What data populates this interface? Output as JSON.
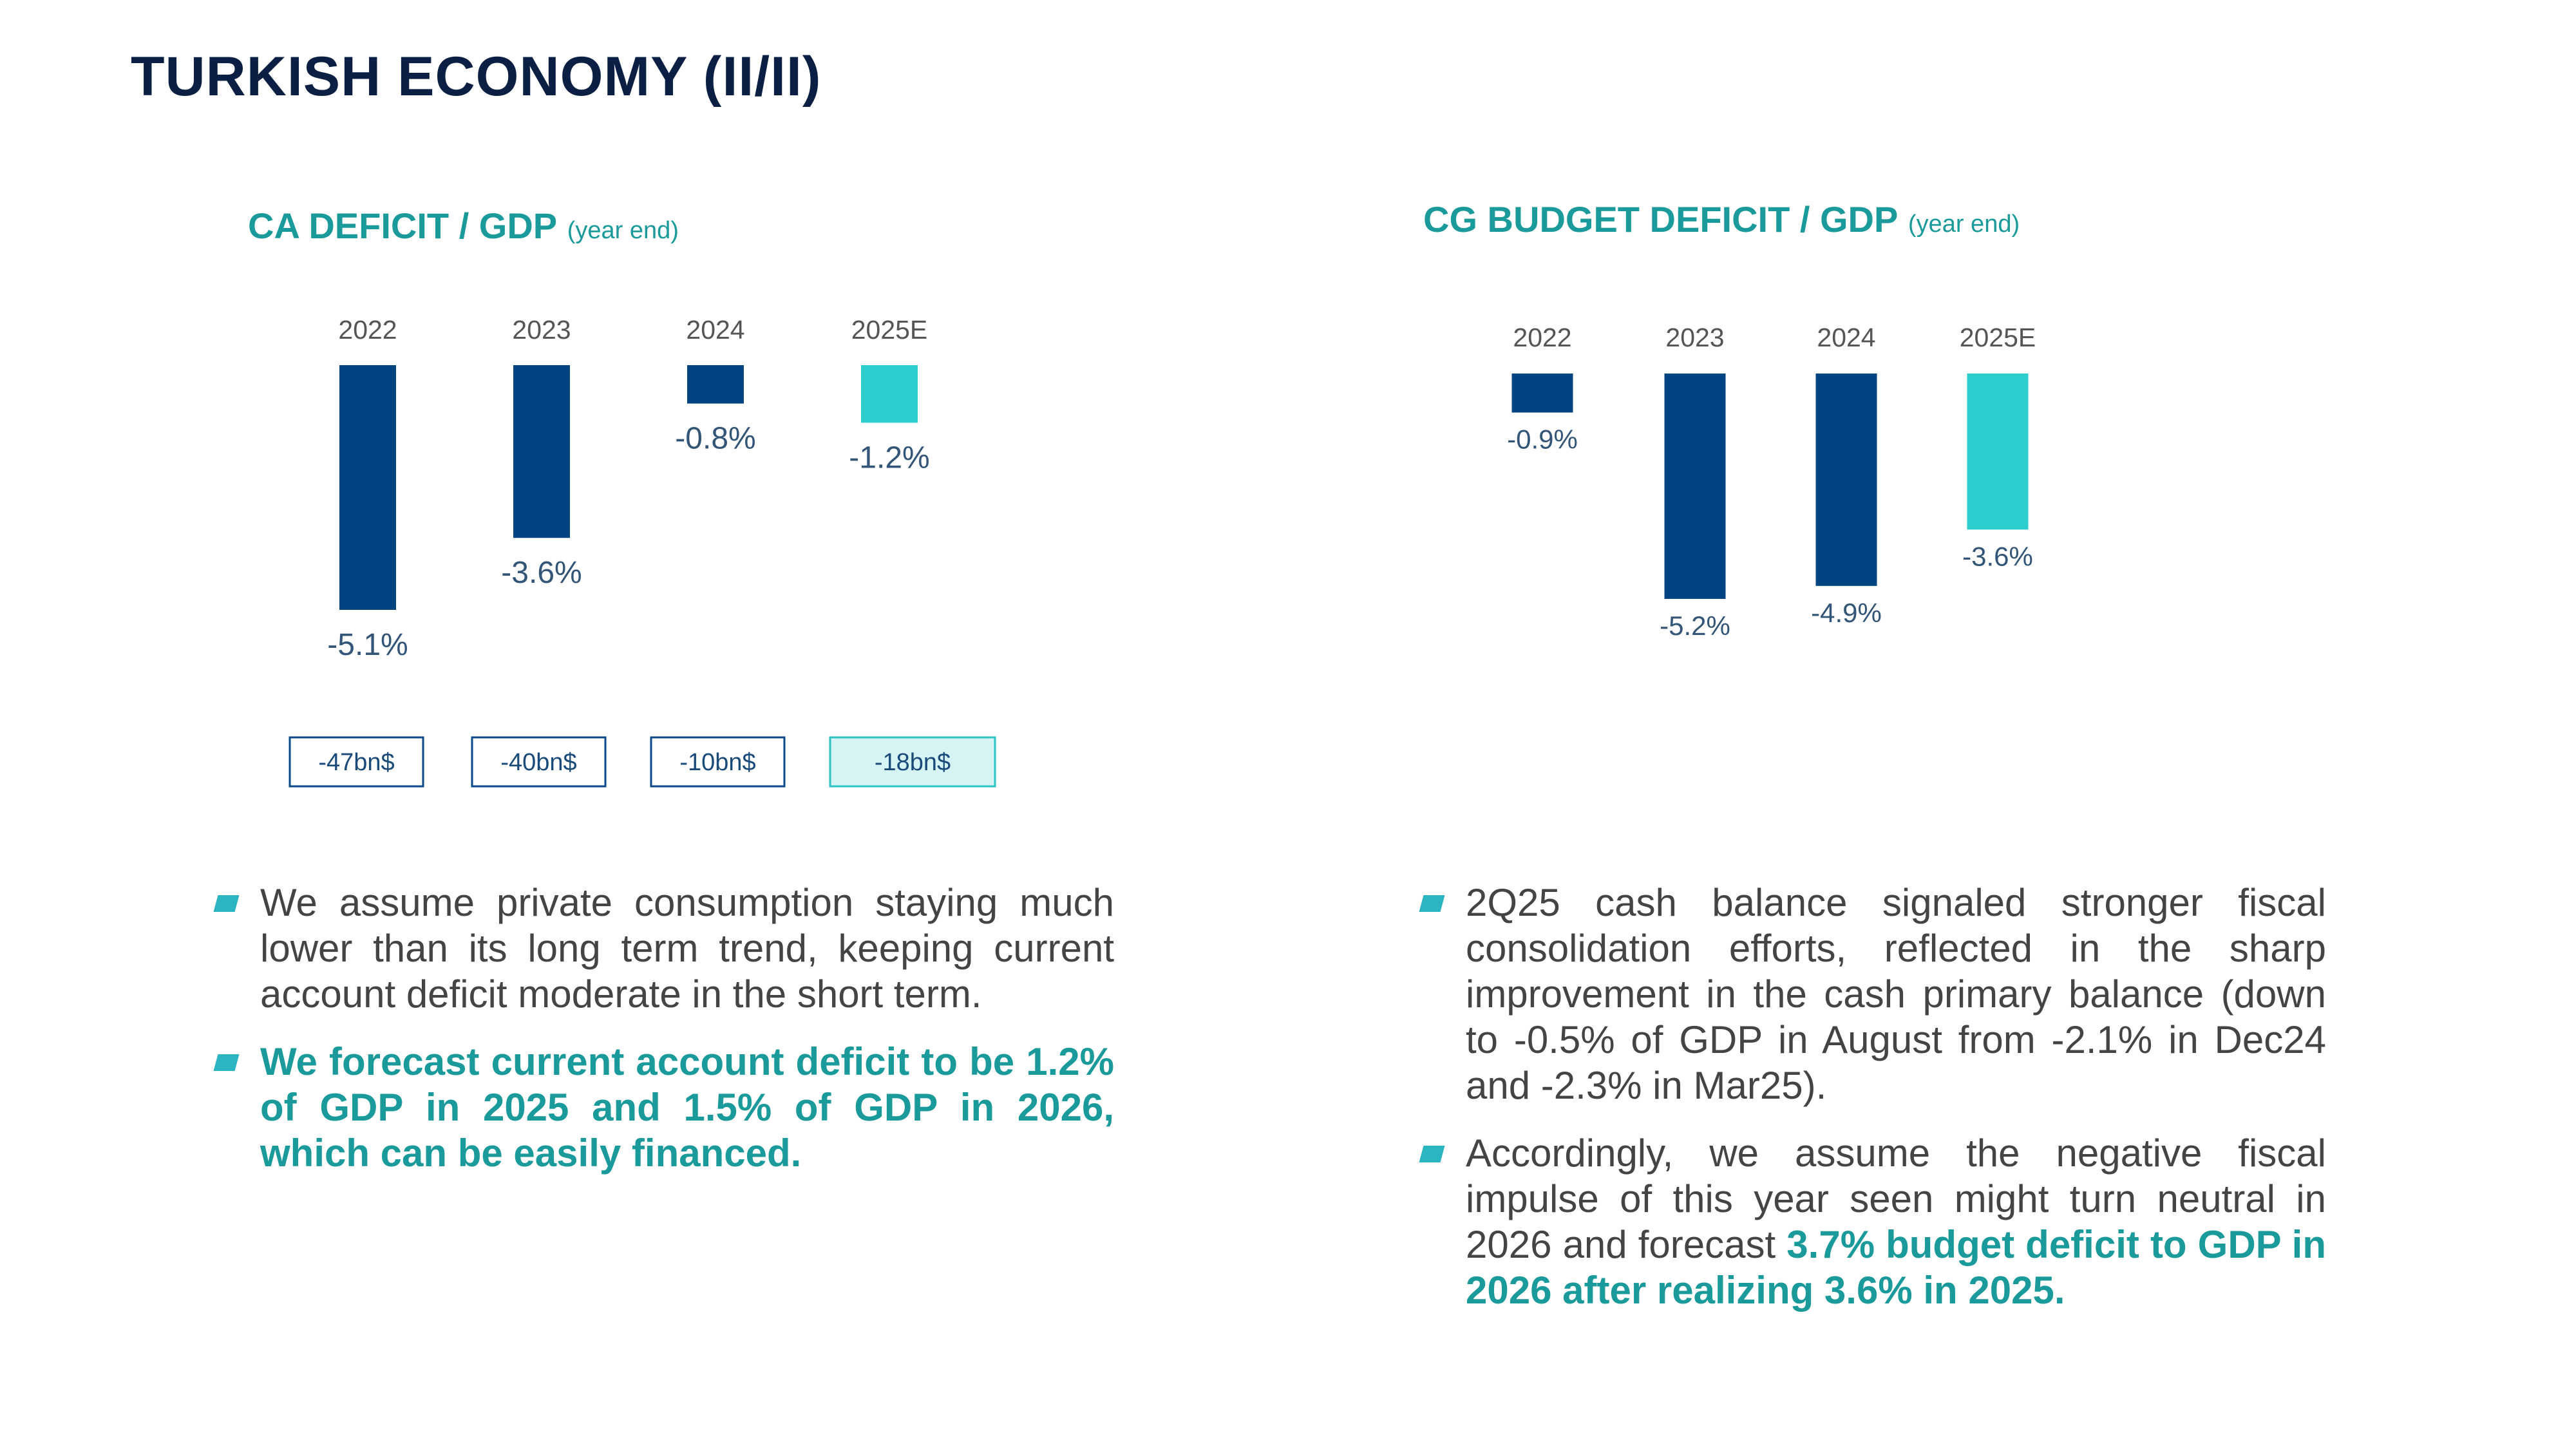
{
  "title": "TURKISH ECONOMY (II/II)",
  "colors": {
    "actual": "#004481",
    "estimate": "#2dcccd",
    "accent": "#1a9a9a",
    "title": "#0b1f44"
  },
  "chart_data": [
    {
      "type": "bar",
      "title": "CA DEFICIT / GDP",
      "subtitle": "(year end)",
      "categories": [
        "2022",
        "2023",
        "2024",
        "2025E"
      ],
      "values": [
        -5.1,
        -3.6,
        -0.8,
        -1.2
      ],
      "value_labels": [
        "-5.1%",
        "-3.6%",
        "-0.8%",
        "-1.2%"
      ],
      "estimate": [
        false,
        false,
        false,
        true
      ],
      "bn_labels": [
        "-47bn$",
        "-40bn$",
        "-10bn$",
        "-18bn$"
      ],
      "unit": "% of GDP",
      "ylim": [
        -5.1,
        0
      ]
    },
    {
      "type": "bar",
      "title": "CG BUDGET DEFICIT / GDP",
      "subtitle": "(year end)",
      "categories": [
        "2022",
        "2023",
        "2024",
        "2025E"
      ],
      "values": [
        -0.9,
        -5.2,
        -4.9,
        -3.6
      ],
      "value_labels": [
        "-0.9%",
        "-5.2%",
        "-4.9%",
        "-3.6%"
      ],
      "estimate": [
        false,
        false,
        false,
        true
      ],
      "unit": "% of GDP",
      "ylim": [
        -5.2,
        0
      ]
    }
  ],
  "left_bullets": [
    {
      "text": "We assume private consumption staying much lower than its long term trend, keeping current account deficit moderate in the short term."
    },
    {
      "bold": "We forecast current account deficit to be 1.2% of GDP in 2025 and 1.5% of GDP in 2026, which can be easily financed."
    }
  ],
  "right_bullets": [
    {
      "text": "2Q25 cash balance signaled stronger fiscal consolidation efforts, reflected in the sharp improvement in the cash primary balance (down to -0.5% of GDP in August from -2.1% in Dec24 and -2.3% in Mar25)."
    },
    {
      "text": "Accordingly, we assume the negative fiscal impulse of this year seen might turn neutral in 2026 and forecast ",
      "bold": "3.7% budget deficit to GDP in 2026 after realizing 3.6% in 2025."
    }
  ]
}
